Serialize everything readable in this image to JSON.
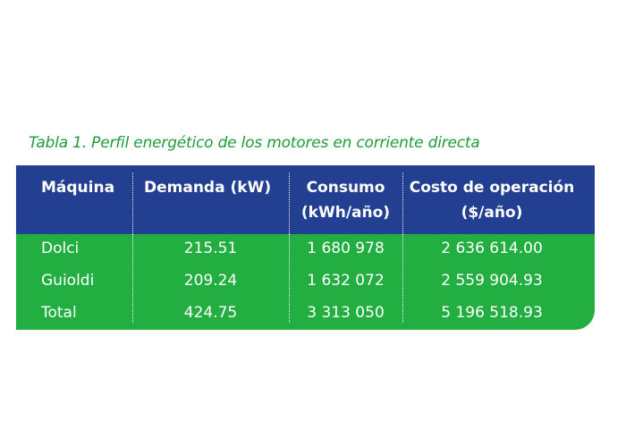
{
  "caption": "Tabla 1. Perfil energético de los motores en corriente directa",
  "headers": [
    "Máquina",
    "Demanda (kW)",
    "Consumo",
    "(kWh/año)",
    "Costo de operación",
    "($/año)"
  ],
  "rows": [
    [
      "Dolci",
      "215.51",
      "1 680 978",
      "2 636 614.00"
    ],
    [
      "Guioldi",
      "209.24",
      "1 632 072",
      "2 559 904.93"
    ],
    [
      "Total",
      "424.75",
      "3 313 050",
      "5 196 518.93"
    ]
  ],
  "colors": {
    "header_bg": "#233f92",
    "body_bg": "#23ae41",
    "caption": "#1f9b3a"
  }
}
